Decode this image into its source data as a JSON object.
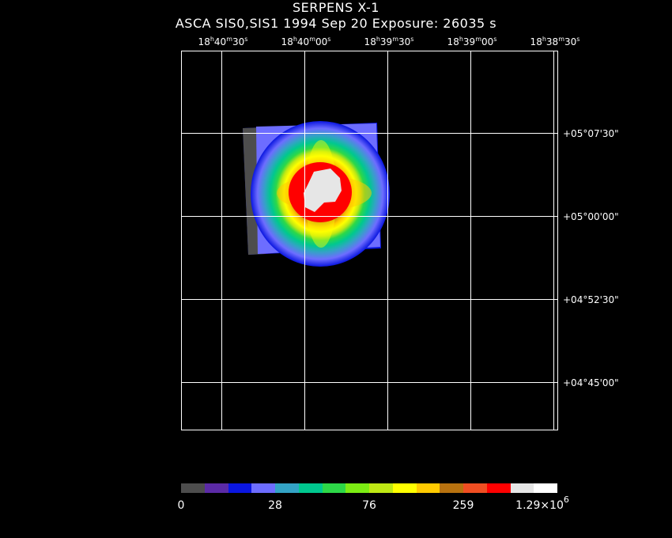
{
  "header": {
    "title": "SERPENS X-1",
    "subtitle": "ASCA SIS0,SIS1   1994 Sep 20   Exposure: 26035 s"
  },
  "axes": {
    "ra_labels": [
      {
        "h": "18",
        "m": "40",
        "s": "30"
      },
      {
        "h": "18",
        "m": "40",
        "s": "00"
      },
      {
        "h": "18",
        "m": "39",
        "s": "30"
      },
      {
        "h": "18",
        "m": "39",
        "s": "00"
      },
      {
        "h": "18",
        "m": "38",
        "s": "30"
      }
    ],
    "dec_labels": [
      "+05°07'30\"",
      "+05°00'00\"",
      "+04°52'30\"",
      "+04°45'00\""
    ]
  },
  "colorbar": {
    "colors": [
      "#4d4d4d",
      "#5b2aa6",
      "#0a16e0",
      "#6d6dff",
      "#33a3c5",
      "#00c88f",
      "#2dd848",
      "#7cec13",
      "#bfe814",
      "#ffff00",
      "#ffca00",
      "#b8720f",
      "#f04e22",
      "#ff0000",
      "#e6e6e6",
      "#ffffff"
    ],
    "labels": [
      {
        "text": "0"
      },
      {
        "text": "28"
      },
      {
        "text": "76"
      },
      {
        "text": "259"
      },
      {
        "text": "1.29×10",
        "sup": "6"
      }
    ]
  }
}
